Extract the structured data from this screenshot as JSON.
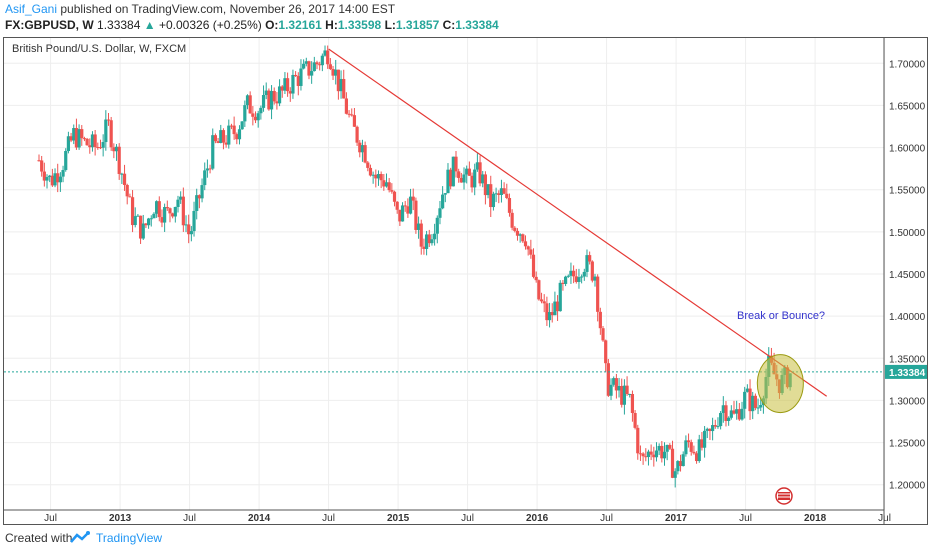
{
  "header": {
    "author": "Asif_Gani",
    "published_text": "published on TradingView.com, November 26, 2017 14:00 EST",
    "symbol": "FX:GBPUSD, W",
    "last": "1.33384",
    "change": "+0.00326 (+0.25%)",
    "o_label": "O:",
    "o_value": "1.32161",
    "h_label": "H:",
    "h_value": "1.33598",
    "l_label": "L:",
    "l_value": "1.31857",
    "c_label": "C:",
    "c_value": "1.33384"
  },
  "footer": {
    "created_with": "Created with",
    "brand": "TradingView"
  },
  "colors": {
    "up": "#26a69a",
    "down": "#ef5350",
    "trendline": "#e53935",
    "accent": "#2196f3",
    "highlight": "#c8c040"
  },
  "chart_data": {
    "type": "candlestick",
    "title": "British Pound/U.S. Dollar, W, FXCM",
    "y_ticks": [
      "1.70000",
      "1.65000",
      "1.60000",
      "1.55000",
      "1.50000",
      "1.45000",
      "1.40000",
      "1.35000",
      "1.30000",
      "1.25000",
      "1.20000"
    ],
    "ylim": [
      1.17,
      1.73
    ],
    "x_ticks": [
      "Jul",
      "2013",
      "Jul",
      "2014",
      "Jul",
      "2015",
      "Jul",
      "2016",
      "Jul",
      "2017",
      "Jul",
      "2018",
      "Jul"
    ],
    "last_price_label": "1.33384",
    "annotation": "Break or Bounce?",
    "series_path": [
      [
        "2012-06",
        1.585
      ],
      [
        "2012-07",
        1.56
      ],
      [
        "2012-08",
        1.58
      ],
      [
        "2012-09",
        1.615
      ],
      [
        "2012-10",
        1.605
      ],
      [
        "2012-11",
        1.6
      ],
      [
        "2012-12",
        1.625
      ],
      [
        "2013-01",
        1.58
      ],
      [
        "2013-02",
        1.52
      ],
      [
        "2013-03",
        1.5
      ],
      [
        "2013-04",
        1.535
      ],
      [
        "2013-05",
        1.52
      ],
      [
        "2013-06",
        1.54
      ],
      [
        "2013-07",
        1.495
      ],
      [
        "2013-08",
        1.55
      ],
      [
        "2013-09",
        1.6
      ],
      [
        "2013-10",
        1.61
      ],
      [
        "2013-11",
        1.62
      ],
      [
        "2013-12",
        1.65
      ],
      [
        "2014-01",
        1.645
      ],
      [
        "2014-02",
        1.66
      ],
      [
        "2014-03",
        1.665
      ],
      [
        "2014-04",
        1.68
      ],
      [
        "2014-05",
        1.69
      ],
      [
        "2014-06",
        1.7
      ],
      [
        "2014-07",
        1.715
      ],
      [
        "2014-08",
        1.67
      ],
      [
        "2014-09",
        1.625
      ],
      [
        "2014-10",
        1.6
      ],
      [
        "2014-11",
        1.565
      ],
      [
        "2014-12",
        1.56
      ],
      [
        "2015-01",
        1.515
      ],
      [
        "2015-02",
        1.54
      ],
      [
        "2015-03",
        1.485
      ],
      [
        "2015-04",
        1.505
      ],
      [
        "2015-05",
        1.555
      ],
      [
        "2015-06",
        1.58
      ],
      [
        "2015-07",
        1.56
      ],
      [
        "2015-08",
        1.57
      ],
      [
        "2015-09",
        1.535
      ],
      [
        "2015-10",
        1.545
      ],
      [
        "2015-11",
        1.51
      ],
      [
        "2015-12",
        1.495
      ],
      [
        "2016-01",
        1.425
      ],
      [
        "2016-02",
        1.395
      ],
      [
        "2016-03",
        1.425
      ],
      [
        "2016-04",
        1.445
      ],
      [
        "2016-05",
        1.465
      ],
      [
        "2016-06",
        1.45
      ],
      [
        "2016-07",
        1.32
      ],
      [
        "2016-08",
        1.31
      ],
      [
        "2016-09",
        1.3
      ],
      [
        "2016-10",
        1.225
      ],
      [
        "2016-11",
        1.245
      ],
      [
        "2016-12",
        1.24
      ],
      [
        "2017-01",
        1.215
      ],
      [
        "2017-02",
        1.25
      ],
      [
        "2017-03",
        1.24
      ],
      [
        "2017-04",
        1.26
      ],
      [
        "2017-05",
        1.295
      ],
      [
        "2017-06",
        1.28
      ],
      [
        "2017-07",
        1.305
      ],
      [
        "2017-08",
        1.29
      ],
      [
        "2017-09",
        1.34
      ],
      [
        "2017-10",
        1.32
      ],
      [
        "2017-11",
        1.334
      ]
    ],
    "trendline": {
      "from": [
        "2014-07",
        1.717
      ],
      "to": [
        "2018-02",
        1.305
      ]
    }
  }
}
